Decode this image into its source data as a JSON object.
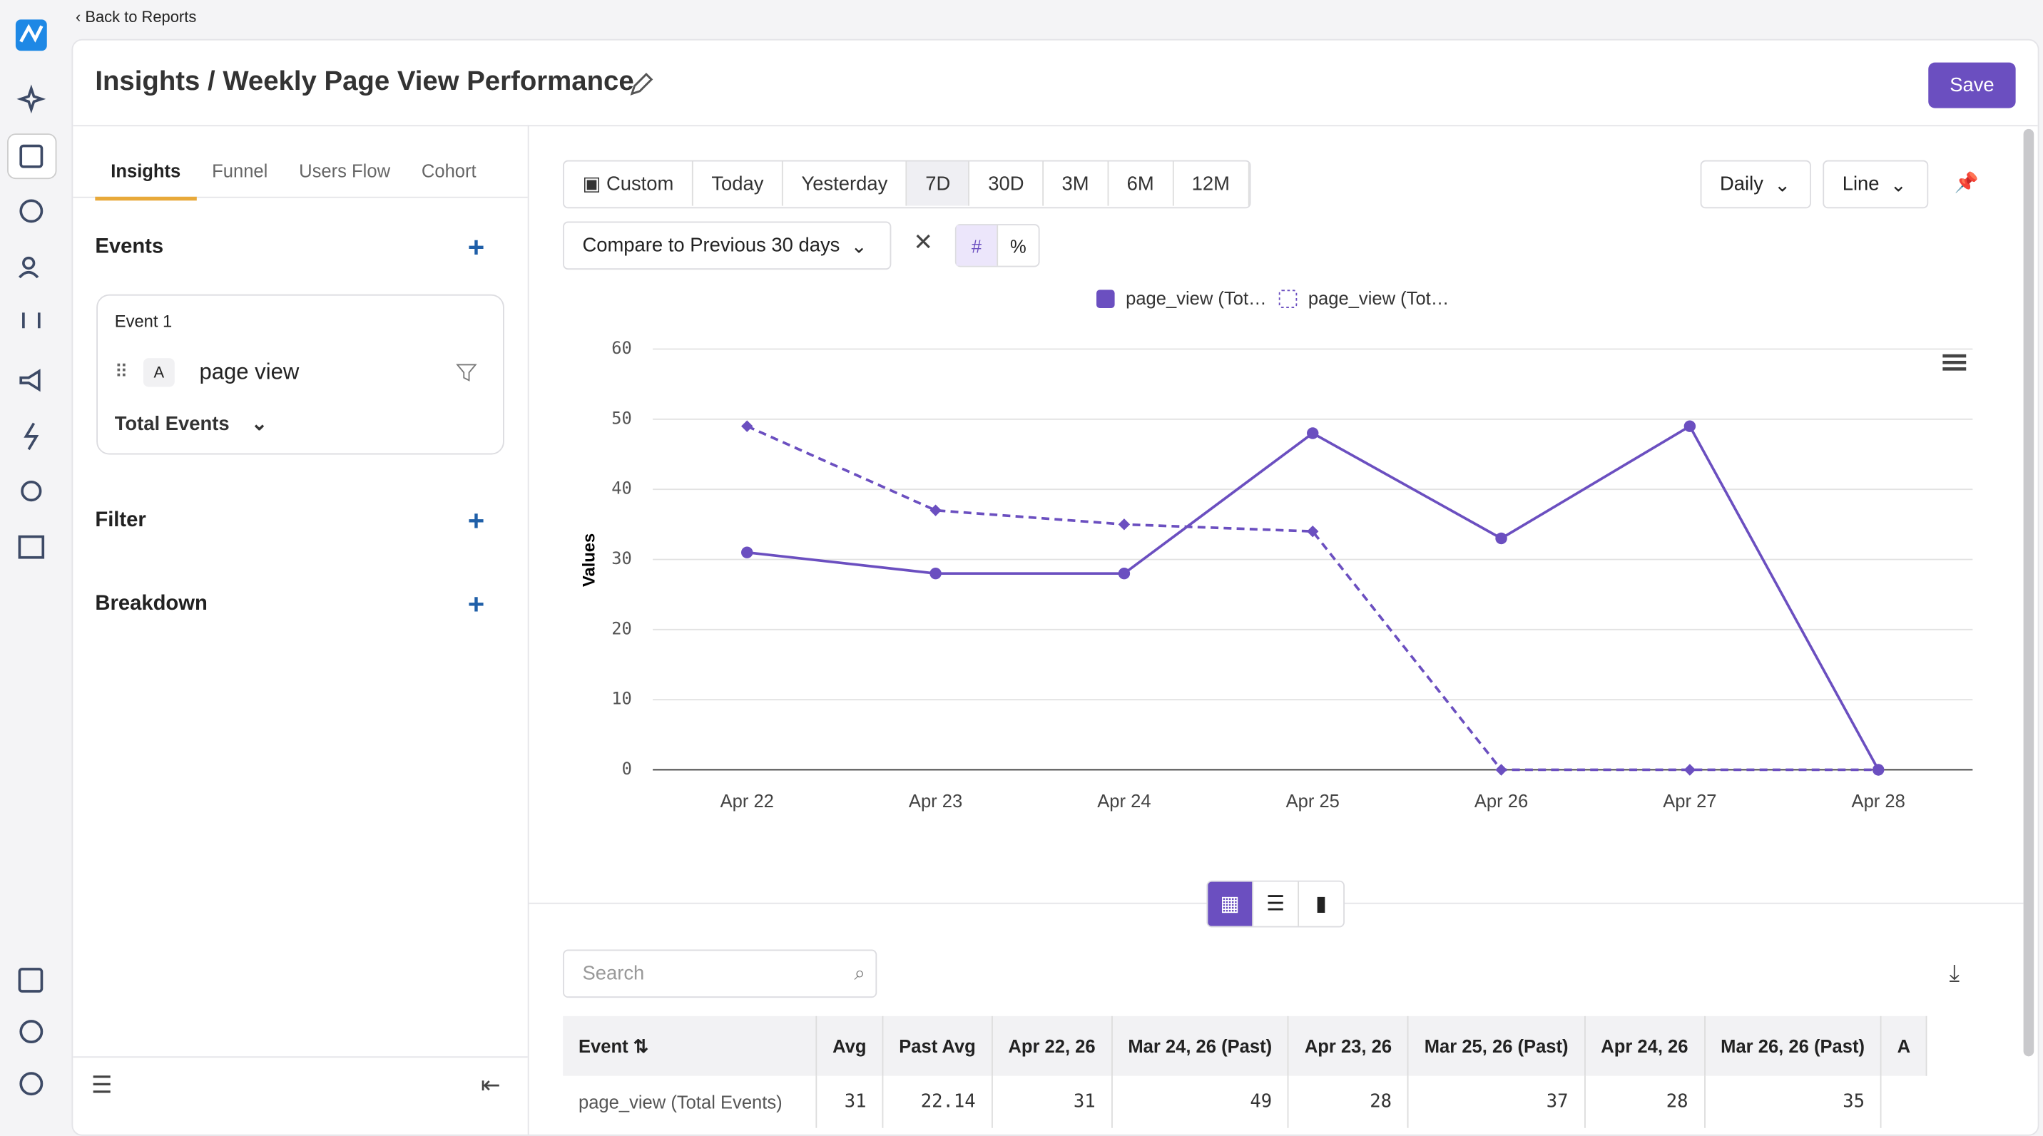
{
  "nav": {
    "back": "Back to Reports"
  },
  "header": {
    "title": "Insights / Weekly Page View Performance",
    "save": "Save"
  },
  "tabs": [
    "Insights",
    "Funnel",
    "Users Flow",
    "Cohort"
  ],
  "panel": {
    "events": "Events",
    "event_label": "Event 1",
    "event_letter": "A",
    "event_name": "page view",
    "measure": "Total Events",
    "filter": "Filter",
    "breakdown": "Breakdown"
  },
  "toolbar": {
    "ranges": [
      "Custom",
      "Today",
      "Yesterday",
      "7D",
      "30D",
      "3M",
      "6M",
      "12M"
    ],
    "interval": "Daily",
    "chart_type": "Line",
    "compare": "Compare to Previous 30 days",
    "number": "#",
    "percent": "%"
  },
  "chart_data": {
    "type": "line",
    "y_label": "Values",
    "categories": [
      "Apr 22",
      "Apr 23",
      "Apr 24",
      "Apr 25",
      "Apr 26",
      "Apr 27",
      "Apr 28"
    ],
    "series": [
      {
        "name": "page_view (Tot…",
        "color": "#6b4fc0",
        "style": "solid",
        "values": [
          31,
          28,
          28,
          48,
          33,
          49,
          0
        ]
      },
      {
        "name": "page_view (Tot…",
        "color": "#6b4fc0",
        "style": "dashed",
        "values": [
          49,
          37,
          35,
          34,
          0,
          0,
          0
        ]
      }
    ],
    "ylim": [
      0,
      60
    ],
    "yticks": [
      0,
      10,
      20,
      30,
      40,
      50,
      60
    ],
    "grid": true
  },
  "table": {
    "search": "Search",
    "columns": [
      "Event",
      "Avg",
      "Past Avg",
      "Apr 22, 26",
      "Mar 24, 26 (Past)",
      "Apr 23, 26",
      "Mar 25, 26 (Past)",
      "Apr 24, 26",
      "Mar 26, 26 (Past)",
      "A"
    ],
    "rows": [
      [
        "page_view (Total Events)",
        31,
        22.14,
        31,
        49,
        28,
        37,
        28,
        35
      ]
    ]
  }
}
